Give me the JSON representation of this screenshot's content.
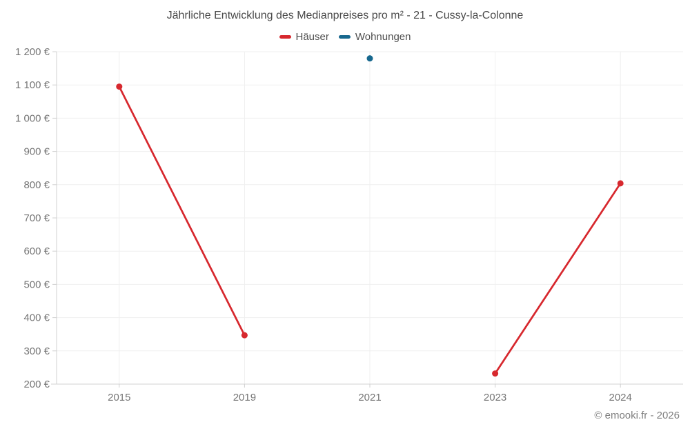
{
  "footer": {
    "copyright": "© emooki.fr - 2026"
  },
  "colors": {
    "grid": "#efefef",
    "axis": "#d0d0d0",
    "title_text": "#4a4a4a",
    "tick_text": "#757575",
    "copyright_text": "#7f7f7f"
  },
  "chart_data": {
    "type": "line",
    "title": "Jährliche Entwicklung des Medianpreises pro m² - 21 - Cussy-la-Colonne",
    "categories": [
      "2015",
      "2019",
      "2021",
      "2023",
      "2024"
    ],
    "series": [
      {
        "name": "Häuser",
        "color": "#d7282e",
        "values": [
          1095,
          347,
          null,
          232,
          804
        ]
      },
      {
        "name": "Wohnungen",
        "color": "#17688e",
        "values": [
          null,
          null,
          1180,
          null,
          null
        ]
      }
    ],
    "xlabel": "",
    "ylabel": "",
    "ylim": [
      200,
      1200
    ],
    "ytick_step": 100,
    "ytick_labels": [
      "200 €",
      "300 €",
      "400 €",
      "500 €",
      "600 €",
      "700 €",
      "800 €",
      "900 €",
      "1 000 €",
      "1 100 €",
      "1 200 €"
    ],
    "grid": true,
    "legend_position": "top",
    "marker": "circle"
  }
}
